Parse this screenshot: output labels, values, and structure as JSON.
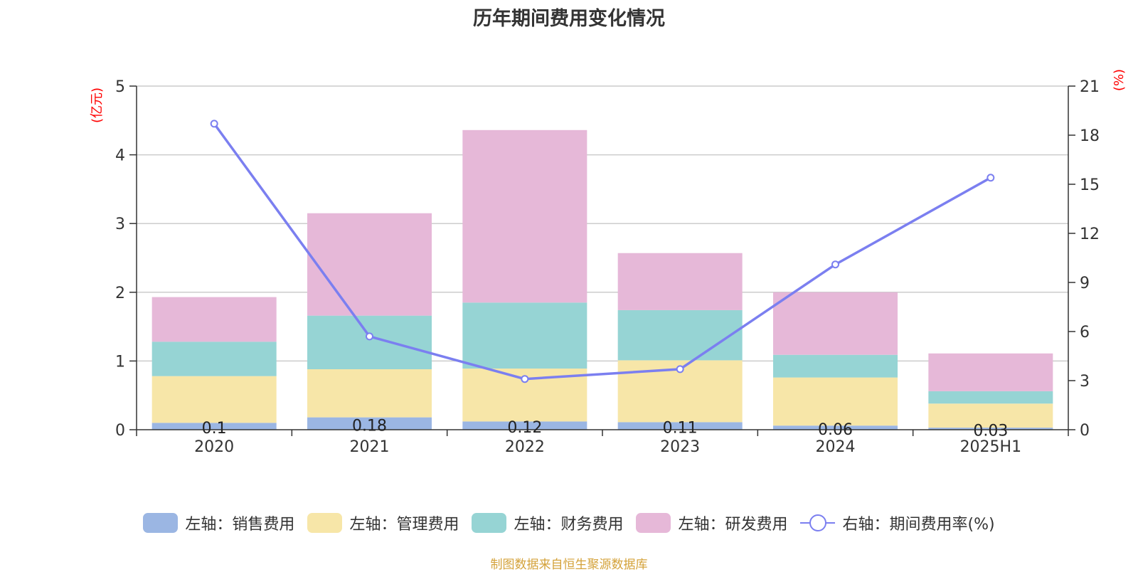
{
  "title": "历年期间费用变化情况",
  "left_unit": "(亿元)",
  "right_unit": "(%)",
  "source": "制图数据来自恒生聚源数据库",
  "colors": {
    "sales": "#9bb6e3",
    "admin": "#f7e6a8",
    "finance": "#96d4d4",
    "rd": "#e6b8d8",
    "rate": "#7b7ff0"
  },
  "chart_data": {
    "type": "bar",
    "stacked": true,
    "categories": [
      "2020",
      "2021",
      "2022",
      "2023",
      "2024",
      "2025H1"
    ],
    "ylim_left": [
      0,
      5
    ],
    "yticks_left": [
      "0",
      "1",
      "2",
      "3",
      "4",
      "5"
    ],
    "ylim_right": [
      0,
      21
    ],
    "yticks_right": [
      "0",
      "3",
      "6",
      "9",
      "12",
      "15",
      "18",
      "21"
    ],
    "grid": true,
    "legend_position": "bottom",
    "series": [
      {
        "name": "左轴：销售费用",
        "axis": "left",
        "values": [
          0.1,
          0.18,
          0.12,
          0.11,
          0.06,
          0.03
        ],
        "labels": [
          "0.1",
          "0.18",
          "0.12",
          "0.11",
          "0.06",
          "0.03"
        ]
      },
      {
        "name": "左轴：管理费用",
        "axis": "left",
        "values": [
          0.68,
          0.7,
          0.77,
          0.9,
          0.7,
          0.35
        ]
      },
      {
        "name": "左轴：财务费用",
        "axis": "left",
        "values": [
          0.5,
          0.78,
          0.96,
          0.73,
          0.33,
          0.18
        ]
      },
      {
        "name": "左轴：研发费用",
        "axis": "left",
        "values": [
          0.65,
          1.49,
          2.51,
          0.83,
          0.91,
          0.55
        ]
      },
      {
        "name": "右轴：期间费用率(%)",
        "axis": "right",
        "type": "line",
        "values": [
          18.7,
          5.7,
          3.1,
          3.7,
          10.1,
          15.4
        ]
      }
    ]
  }
}
